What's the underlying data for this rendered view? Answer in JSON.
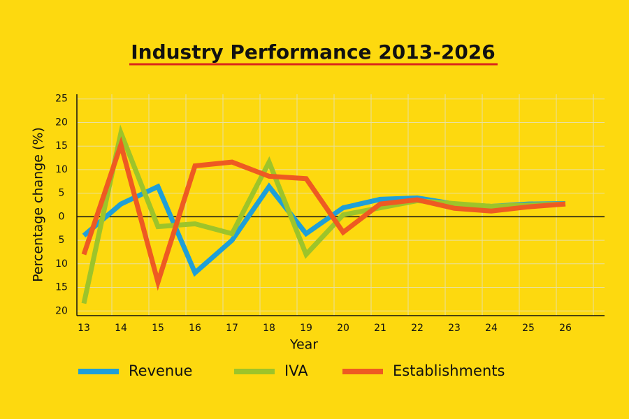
{
  "chart_data": {
    "type": "line",
    "title": "Industry Performance 2013-2026",
    "x_label": "Year",
    "y_label": "Percentage change (%)",
    "categories": [
      "13",
      "14",
      "15",
      "16",
      "17",
      "18",
      "19",
      "20",
      "21",
      "22",
      "23",
      "24",
      "25",
      "26"
    ],
    "ylim": [
      -21,
      26
    ],
    "yticks": [
      {
        "value": -20,
        "label": "20"
      },
      {
        "value": -15,
        "label": "15"
      },
      {
        "value": -10,
        "label": "10"
      },
      {
        "value": -5,
        "label": "5"
      },
      0,
      5,
      10,
      15,
      20,
      25
    ],
    "grid": true,
    "series": [
      {
        "name": "Revenue",
        "color": "#1e9fd8",
        "values": [
          -4,
          2.7,
          6.4,
          -11.9,
          -5,
          6.4,
          -3.6,
          1.9,
          3.7,
          4,
          2.7,
          2.2,
          2.7,
          2.8
        ]
      },
      {
        "name": "IVA",
        "color": "#9dc42a",
        "values": [
          -18.4,
          17.8,
          -2.1,
          -1.5,
          -3.6,
          11.6,
          -8,
          0.4,
          1.9,
          3.4,
          2.8,
          2.2,
          2.5,
          2.7
        ]
      },
      {
        "name": "Establishments",
        "color": "#ee5a22",
        "values": [
          -8,
          15.3,
          -13.9,
          10.8,
          11.6,
          8.6,
          8.1,
          -3.3,
          2.7,
          3.6,
          1.8,
          1.2,
          2.1,
          2.7
        ]
      }
    ]
  }
}
